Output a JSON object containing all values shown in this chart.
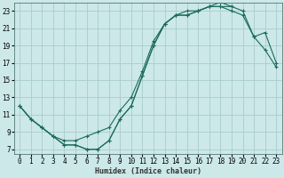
{
  "xlabel": "Humidex (Indice chaleur)",
  "bg_color": "#cce8e8",
  "grid_color": "#aacccc",
  "line_color": "#1a6b5a",
  "xlim": [
    -0.5,
    23.5
  ],
  "ylim": [
    6.5,
    24.0
  ],
  "xticks": [
    0,
    1,
    2,
    3,
    4,
    5,
    6,
    7,
    8,
    9,
    10,
    11,
    12,
    13,
    14,
    15,
    16,
    17,
    18,
    19,
    20,
    21,
    22,
    23
  ],
  "yticks": [
    7,
    9,
    11,
    13,
    15,
    17,
    19,
    21,
    23
  ],
  "line1_x": [
    0,
    1,
    2,
    3,
    4,
    5,
    6,
    7,
    8,
    9,
    10,
    11,
    12,
    13,
    14,
    15,
    16,
    17,
    18,
    19
  ],
  "line1_y": [
    12,
    10.5,
    9.5,
    8.5,
    7.5,
    7.5,
    7,
    7,
    8.0,
    10.5,
    12.0,
    15.5,
    19.0,
    21.5,
    22.5,
    22.5,
    23.0,
    23.5,
    23.5,
    23.5
  ],
  "line2_x": [
    0,
    1,
    2,
    3,
    4,
    5,
    6,
    7,
    8,
    9,
    10,
    11,
    12,
    13,
    14,
    15,
    16,
    17,
    18,
    19,
    20,
    21,
    22,
    23
  ],
  "line2_y": [
    12,
    10.5,
    9.5,
    8.5,
    7.5,
    7.5,
    7,
    7,
    8.0,
    10.5,
    12.0,
    15.5,
    19.0,
    21.5,
    22.5,
    22.5,
    23.0,
    23.5,
    23.5,
    23.0,
    22.5,
    20.0,
    18.5,
    16.5
  ],
  "line3_x": [
    0,
    1,
    2,
    3,
    4,
    5,
    6,
    7,
    8,
    9,
    10,
    11,
    12,
    13,
    14,
    15,
    16,
    17,
    18,
    19,
    20,
    21,
    22,
    23
  ],
  "line3_y": [
    12,
    10.5,
    9.5,
    8.5,
    8.0,
    8.0,
    8.5,
    9.0,
    9.5,
    11.5,
    13.0,
    16.0,
    19.5,
    21.5,
    22.5,
    23.0,
    23.0,
    23.5,
    24.0,
    23.5,
    23.0,
    20.0,
    20.5,
    17.0
  ]
}
